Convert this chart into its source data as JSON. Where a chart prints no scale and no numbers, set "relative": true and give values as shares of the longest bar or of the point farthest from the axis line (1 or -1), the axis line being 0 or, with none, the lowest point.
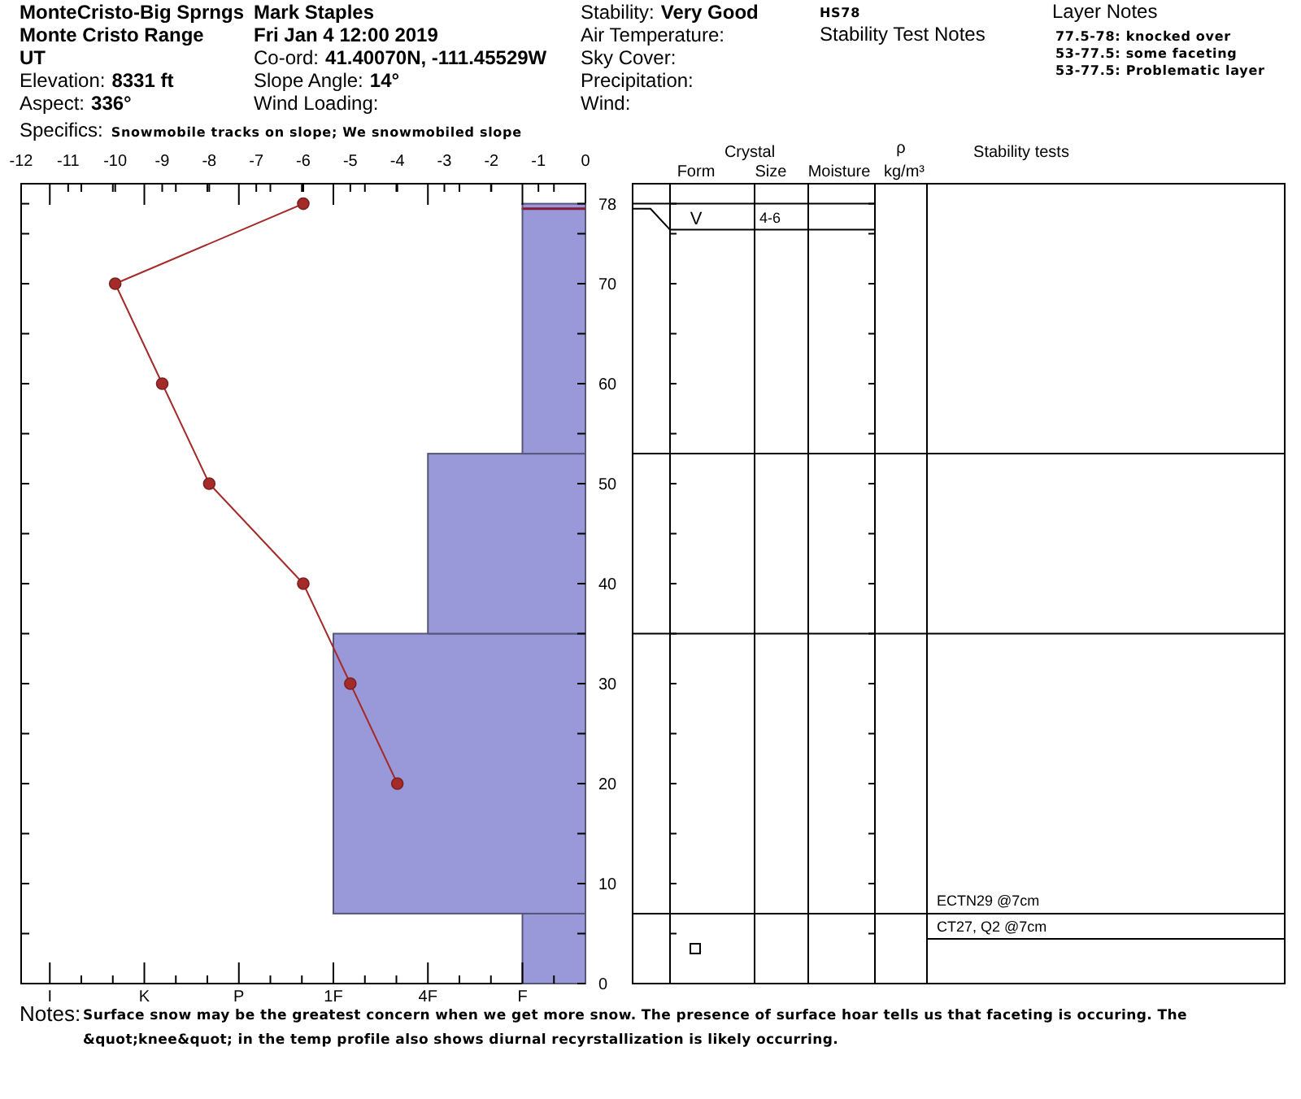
{
  "chart_data": [
    {
      "type": "other",
      "annotations": [
        "MonteCristo-Big Sprngs",
        "Monte Cristo Range",
        "UT",
        "Elevation:",
        "8331 ft",
        "Aspect:",
        "336°",
        "Specifics:",
        "Snowmobile tracks on slope; We snowmobiled slope",
        "Mark Staples",
        "Fri Jan 4 12:00 2019",
        "Co-ord:",
        "41.40070N, -111.45529W",
        "Slope Angle:",
        "14°",
        "Wind Loading:",
        "Stability:",
        "Very Good",
        "Air Temperature:",
        "Sky Cover:",
        "Precipitation:",
        "Wind:",
        "HS78",
        "Stability Test Notes",
        "Layer Notes",
        "77.5-78: knocked over",
        "53-77.5: some faceting",
        "53-77.5: Problematic layer"
      ]
    },
    {
      "type": "bar",
      "orientation": "horizontal",
      "relative": true,
      "color": "#9999d9",
      "x": [
        3.5,
        21,
        44,
        65.25,
        77.75
      ],
      "values": [
        -0.25,
        -1,
        -0.625,
        -0.25,
        -0.25
      ],
      "ylim": [
        0,
        80
      ],
      "yticks": [
        0,
        {
          "value": 5,
          "label": null
        },
        10,
        {
          "value": 15,
          "label": null
        },
        20,
        {
          "value": 25,
          "label": null
        },
        30,
        {
          "value": 35,
          "label": null
        },
        40,
        {
          "value": 45,
          "label": null
        },
        50,
        {
          "value": 55,
          "label": null
        },
        60,
        {
          "value": 65,
          "label": null
        },
        70,
        {
          "value": 75,
          "label": null
        },
        78
      ],
      "ref_lines": [
        {
          "axis": "y",
          "value": 77.5,
          "color": "#8b1a3a"
        }
      ],
      "annotations": [
        "I",
        "K",
        "P",
        "1F",
        "4F",
        "F"
      ]
    },
    {
      "type": "line",
      "marker": "circle",
      "color": "#a52a2a",
      "tick_labels": "x",
      "x": [
        -6,
        -10,
        -9,
        -8,
        -6,
        -5,
        -4
      ],
      "values": [
        78,
        70,
        60,
        50,
        40,
        30,
        20
      ],
      "xlim": [
        -12,
        0
      ],
      "xticks": [
        -12,
        -11,
        -10,
        -9,
        -8,
        -7,
        -6,
        -5,
        -4,
        -3,
        -2,
        -1,
        0
      ],
      "ylim": [
        0,
        80
      ],
      "annotations": [
        "Notes:",
        "Surface snow may be the greatest concern when we get more snow. The presence of surface hoar tells us that faceting is occuring. The &quot;knee&quot; in the temp profile also shows diurnal recyrstallization is likely occurring."
      ]
    },
    {
      "type": "other",
      "annotations": [
        "Crystal",
        "Form",
        "Size",
        "Moisture",
        "ρ",
        "kg/m³",
        "Stability tests",
        "V",
        "4-6",
        "ECTN29 @7cm",
        "CT27, Q2 @7cm"
      ]
    }
  ]
}
